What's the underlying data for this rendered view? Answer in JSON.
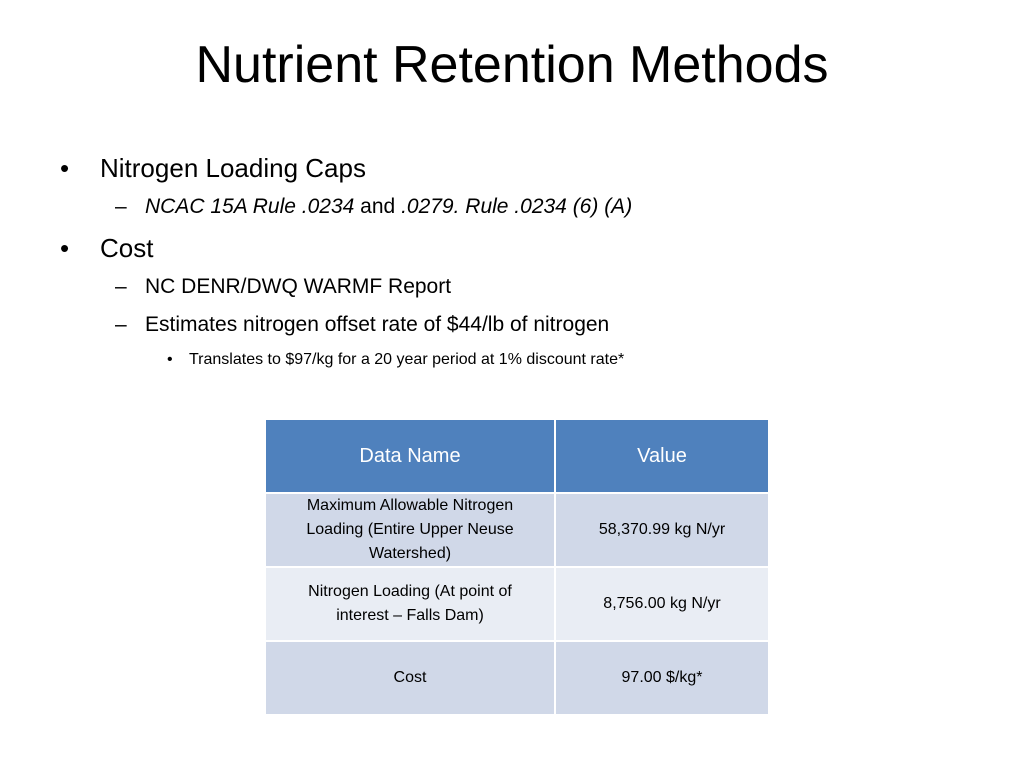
{
  "title": "Nutrient Retention Methods",
  "bullets": {
    "b1": "Nitrogen Loading Caps",
    "b1_sub": {
      "rule1_italic": "NCAC 15A Rule .0234",
      "and_text": " and ",
      "rule2_italic": ".0279. Rule .0234 (6) (A)"
    },
    "b2": "Cost",
    "b2_sub1": "NC DENR/DWQ WARMF Report",
    "b2_sub2": "Estimates nitrogen offset rate of $44/lb of nitrogen",
    "b2_sub2_sub": "Translates to $97/kg for a 20 year period at 1% discount rate*"
  },
  "bullet_glyphs": {
    "level1": "•",
    "level2": "–",
    "level3": "•"
  },
  "table": {
    "headers": [
      "Data Name",
      "Value"
    ],
    "rows": [
      [
        "Maximum Allowable Nitrogen Loading (Entire Upper Neuse Watershed)",
        "58,370.99 kg N/yr"
      ],
      [
        "Nitrogen Loading (At point of interest – Falls Dam)",
        "8,756.00 kg N/yr"
      ],
      [
        "Cost",
        "97.00 $/kg*"
      ]
    ],
    "header_color": "#4f81bd",
    "row_colors": [
      "#d0d8e8",
      "#e9edf4"
    ]
  }
}
